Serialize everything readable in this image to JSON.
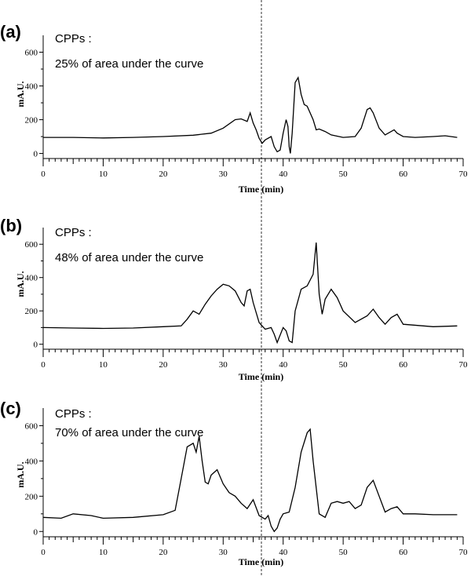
{
  "chart_data": [
    {
      "type": "line",
      "panel": "(a)",
      "annotation": [
        "CPPs :",
        "25% of area under the curve"
      ],
      "xlabel": "Time (min)",
      "ylabel": "mA.U.",
      "xlim": [
        0,
        70
      ],
      "ylim": [
        -30,
        700
      ],
      "xticks": [
        0,
        10,
        20,
        30,
        40,
        50,
        60,
        70
      ],
      "yticks": [
        0,
        200,
        400,
        600
      ],
      "series": [
        {
          "x": [
            0,
            5,
            10,
            15,
            20,
            25,
            28,
            30,
            32,
            33,
            34,
            34.5,
            35,
            35.5,
            36,
            36.5,
            37,
            38,
            38.5,
            39,
            39.5,
            40,
            40.5,
            40.8,
            41,
            41.2,
            41.5,
            42,
            42.5,
            43,
            43.5,
            44,
            45,
            45.5,
            46,
            47,
            48,
            50,
            52,
            53,
            54,
            54.5,
            55,
            56,
            57,
            58,
            58.5,
            59,
            60,
            62,
            65,
            67,
            69
          ],
          "y": [
            95,
            95,
            92,
            95,
            100,
            108,
            120,
            150,
            200,
            205,
            190,
            240,
            180,
            140,
            90,
            60,
            80,
            100,
            40,
            10,
            20,
            120,
            200,
            160,
            40,
            0,
            120,
            420,
            450,
            350,
            290,
            280,
            200,
            140,
            145,
            130,
            110,
            95,
            100,
            150,
            260,
            270,
            240,
            150,
            110,
            130,
            140,
            120,
            100,
            95,
            100,
            105,
            95
          ]
        }
      ]
    },
    {
      "type": "line",
      "panel": "(b)",
      "annotation": [
        "CPPs :",
        "48% of area under the curve"
      ],
      "xlabel": "Time (min)",
      "ylabel": "mA.U.",
      "xlim": [
        0,
        70
      ],
      "ylim": [
        -30,
        700
      ],
      "xticks": [
        0,
        10,
        20,
        30,
        40,
        50,
        60,
        70
      ],
      "yticks": [
        0,
        200,
        400,
        600
      ],
      "series": [
        {
          "x": [
            0,
            5,
            10,
            15,
            20,
            23,
            24,
            25,
            26,
            27,
            28,
            29,
            30,
            31,
            32,
            33,
            33.5,
            34,
            34.5,
            35,
            36,
            37,
            38,
            38.5,
            39,
            40,
            40.5,
            41,
            41.5,
            42,
            43,
            44,
            45,
            45.5,
            46,
            46.5,
            47,
            48,
            49,
            50,
            52,
            54,
            55,
            56,
            57,
            58,
            59,
            60,
            65,
            69
          ],
          "y": [
            100,
            97,
            95,
            97,
            105,
            110,
            150,
            200,
            180,
            240,
            290,
            330,
            360,
            350,
            320,
            250,
            230,
            320,
            330,
            250,
            130,
            90,
            100,
            60,
            10,
            100,
            80,
            20,
            10,
            200,
            330,
            350,
            420,
            610,
            300,
            180,
            270,
            330,
            280,
            200,
            130,
            170,
            210,
            160,
            120,
            160,
            180,
            120,
            105,
            110
          ]
        }
      ]
    },
    {
      "type": "line",
      "panel": "(c)",
      "annotation": [
        "CPPs :",
        "70% of area under the curve"
      ],
      "xlabel": "Time (min)",
      "ylabel": "mA.U.",
      "xlim": [
        0,
        70
      ],
      "ylim": [
        -30,
        700
      ],
      "xticks": [
        0,
        10,
        20,
        30,
        40,
        50,
        60,
        70
      ],
      "yticks": [
        0,
        200,
        400,
        600
      ],
      "series": [
        {
          "x": [
            0,
            3,
            5,
            8,
            10,
            15,
            20,
            22,
            23,
            24,
            25,
            25.5,
            26,
            26.5,
            27,
            27.5,
            28,
            29,
            30,
            31,
            32,
            33,
            34,
            35,
            36,
            36.5,
            37,
            37.5,
            38,
            38.5,
            39,
            39.5,
            40,
            41,
            42,
            43,
            44,
            44.5,
            45,
            46,
            47,
            48,
            49,
            50,
            51,
            52,
            53,
            54,
            55,
            56,
            57,
            58,
            59,
            60,
            62,
            65,
            69
          ],
          "y": [
            80,
            75,
            100,
            90,
            75,
            80,
            95,
            120,
            300,
            480,
            500,
            450,
            540,
            400,
            280,
            270,
            320,
            350,
            270,
            220,
            200,
            160,
            130,
            180,
            90,
            80,
            70,
            90,
            30,
            0,
            20,
            70,
            100,
            110,
            250,
            450,
            560,
            580,
            400,
            100,
            80,
            160,
            170,
            160,
            170,
            130,
            150,
            250,
            290,
            200,
            110,
            130,
            140,
            100,
            100,
            95,
            95
          ]
        }
      ]
    }
  ]
}
